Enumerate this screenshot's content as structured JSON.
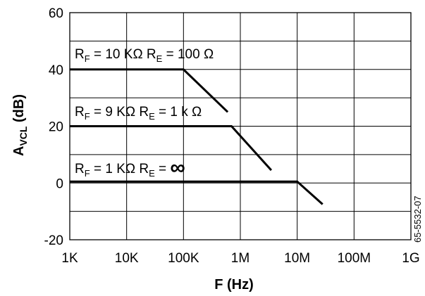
{
  "chart_data": {
    "type": "line",
    "xlabel": "F (Hz)",
    "ylabel": {
      "main": "A",
      "sub": "VCL",
      "unit": " (dB)"
    },
    "x_scale": "log",
    "xlim": [
      1000,
      1000000000
    ],
    "ylim": [
      -20,
      60
    ],
    "x_ticks": [
      {
        "value": 1000,
        "label": "1K"
      },
      {
        "value": 10000,
        "label": "10K"
      },
      {
        "value": 100000,
        "label": "100K"
      },
      {
        "value": 1000000,
        "label": "1M"
      },
      {
        "value": 10000000,
        "label": "10M"
      },
      {
        "value": 100000000,
        "label": "100M"
      },
      {
        "value": 1000000000,
        "label": "1G"
      }
    ],
    "y_ticks": [
      {
        "value": -20,
        "label": "-20"
      },
      {
        "value": 0,
        "label": "0"
      },
      {
        "value": 20,
        "label": "20"
      },
      {
        "value": 40,
        "label": "40"
      },
      {
        "value": 60,
        "label": "60"
      }
    ],
    "grid": {
      "major_x": true,
      "y_step": 10
    },
    "series": [
      {
        "label": {
          "rf": "10 K",
          "re": "100 "
        },
        "points": [
          [
            1000,
            40
          ],
          [
            100000,
            40
          ],
          [
            600000,
            25
          ]
        ]
      },
      {
        "label": {
          "rf": "9 K",
          "re": "1 k "
        },
        "points": [
          [
            1000,
            20
          ],
          [
            700000,
            20
          ],
          [
            3500000,
            4.5
          ]
        ]
      },
      {
        "label": {
          "rf": "1 K",
          "re": "",
          "re_symbol": "∞"
        },
        "points": [
          [
            1000,
            0.5
          ],
          [
            10000000,
            0.5
          ],
          [
            28000000,
            -7.5
          ]
        ]
      }
    ]
  },
  "side_note": "65-5532-07"
}
